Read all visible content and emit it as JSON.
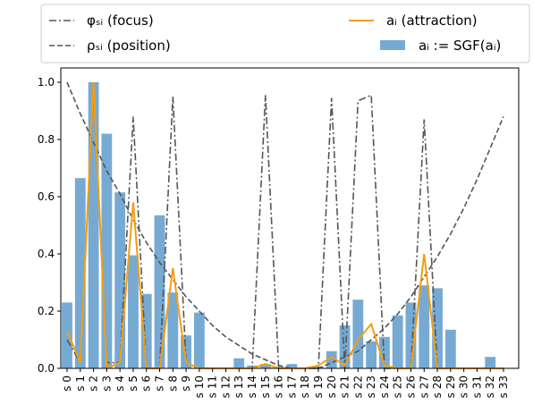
{
  "chart_data": {
    "type": "bar_line",
    "categories": [
      "s 0",
      "s 1",
      "s 2",
      "s 3",
      "s 4",
      "s 5",
      "s 6",
      "s 7",
      "s 8",
      "s 9",
      "s 10",
      "s 11",
      "s 12",
      "s 13",
      "s 14",
      "s 15",
      "s 16",
      "s 17",
      "s 18",
      "s 19",
      "s 20",
      "s 21",
      "s 22",
      "s 23",
      "s 24",
      "s 25",
      "s 26",
      "s 27",
      "s 28",
      "s 29",
      "s 30",
      "s 31",
      "s 32",
      "s 33"
    ],
    "series": [
      {
        "name": "φₛᵢ (focus)",
        "kind": "line",
        "style": "dashdot",
        "color": "#555555",
        "values": [
          0.1,
          0.02,
          0.98,
          0.02,
          0.02,
          0.88,
          0,
          0,
          0.95,
          0.02,
          0,
          0,
          0,
          0,
          0,
          0.955,
          0,
          0,
          0,
          0,
          0.945,
          0,
          0.935,
          0.955,
          0,
          0,
          0,
          0.87,
          0,
          0,
          0,
          0,
          0,
          0
        ]
      },
      {
        "name": "ρₛᵢ (position)",
        "kind": "line",
        "style": "dashed",
        "color": "#555555",
        "values": [
          1.0,
          0.89,
          0.79,
          0.69,
          0.61,
          0.52,
          0.44,
          0.37,
          0.31,
          0.25,
          0.2,
          0.15,
          0.11,
          0.08,
          0.05,
          0.03,
          0.01,
          0.0,
          0,
          0.0,
          0.02,
          0.04,
          0.06,
          0.1,
          0.14,
          0.19,
          0.25,
          0.32,
          0.39,
          0.47,
          0.56,
          0.66,
          0.77,
          0.88
        ]
      },
      {
        "name": "aᵢ (attraction)",
        "kind": "line",
        "style": "solid",
        "color": "#f59d12",
        "values": [
          0.13,
          0.02,
          1.0,
          0,
          0.02,
          0.58,
          0,
          0,
          0.35,
          0.02,
          0,
          0,
          0,
          0,
          0,
          0.015,
          0,
          0,
          0,
          0.01,
          0.04,
          0.01,
          0.1,
          0.155,
          0.01,
          0,
          0,
          0.4,
          0,
          0,
          0,
          0,
          0,
          0
        ]
      },
      {
        "name": "aᵢ := SGF(aᵢ)",
        "kind": "bar",
        "color": "#76aad3",
        "values": [
          0.23,
          0.665,
          1.0,
          0.82,
          0.615,
          0.395,
          0.26,
          0.535,
          0.265,
          0.115,
          0.195,
          0,
          0,
          0.035,
          0.01,
          0.015,
          0.005,
          0.015,
          0,
          0.005,
          0.06,
          0.15,
          0.24,
          0.095,
          0.11,
          0.185,
          0.23,
          0.29,
          0.28,
          0.135,
          0,
          0,
          0.04,
          0
        ]
      }
    ],
    "ylim": [
      0,
      1.05
    ],
    "yticks": [
      {
        "value": 0,
        "label": "0.0"
      },
      {
        "value": 0.2,
        "label": "0.2"
      },
      {
        "value": 0.4,
        "label": "0.4"
      },
      {
        "value": 0.6,
        "label": "0.6"
      },
      {
        "value": 0.8,
        "label": "0.8"
      },
      {
        "value": 1.0,
        "label": "1.0"
      }
    ],
    "grid": false,
    "legend": "top"
  }
}
